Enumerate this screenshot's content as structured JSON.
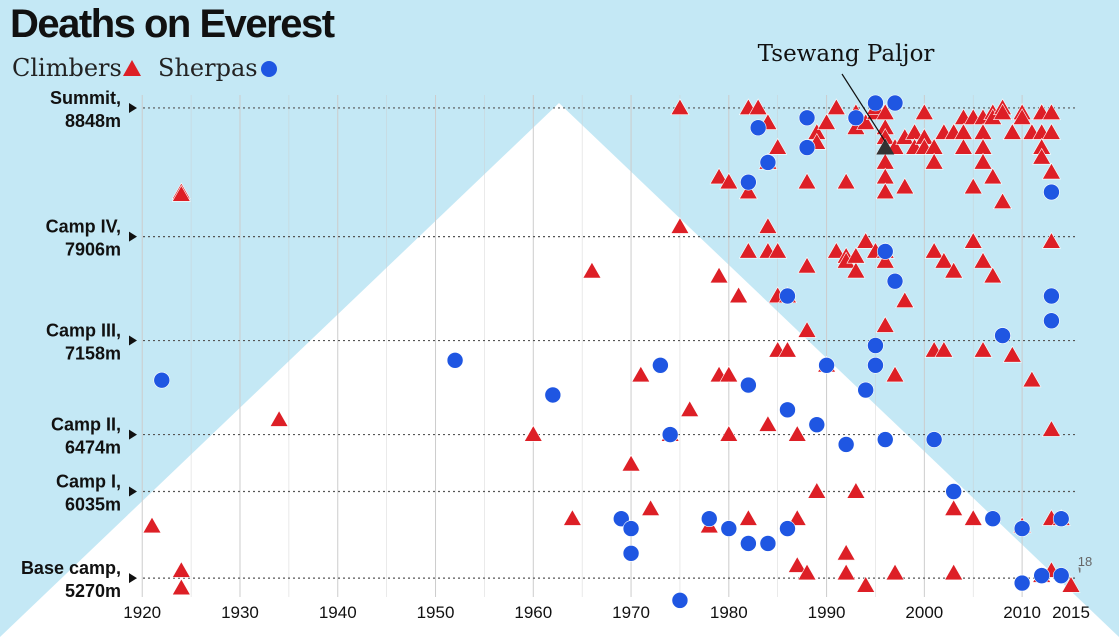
{
  "colors": {
    "sky": "#c4e8f5",
    "mountain": "#ffffff",
    "climber": "#dd1f26",
    "sherpa": "#1f56e2",
    "grid": "#cccccc",
    "category_line": "#555555"
  },
  "chart_data": {
    "type": "scatter",
    "title": "Deaths on Everest",
    "legend": [
      {
        "name": "Climbers",
        "shape": "triangle"
      },
      {
        "name": "Sherpas",
        "shape": "circle"
      }
    ],
    "x": {
      "min": 1918,
      "max": 2016,
      "ticks": [
        1920,
        1930,
        1940,
        1950,
        1960,
        1970,
        1980,
        1990,
        2000,
        2010,
        2015
      ]
    },
    "y": {
      "min": 0,
      "max": 100
    },
    "levels": [
      {
        "name": "Summit,",
        "height": "8848m",
        "y": 97
      },
      {
        "name": "Camp IV,",
        "height": "7906m",
        "y": 71
      },
      {
        "name": "Camp III,",
        "height": "7158m",
        "y": 50
      },
      {
        "name": "Camp II,",
        "height": "6474m",
        "y": 31
      },
      {
        "name": "Camp I,",
        "height": "6035m",
        "y": 19.5
      },
      {
        "name": "Base camp,",
        "height": "5270m",
        "y": 2
      }
    ],
    "annotations": [
      {
        "text": "Tsewang Paljor",
        "x": 1996,
        "y": 89
      },
      {
        "text": "18",
        "x": 2015,
        "y": 3
      }
    ],
    "series": [
      {
        "name": "Climbers",
        "points": [
          [
            1921,
            12.5
          ],
          [
            1924,
            0
          ],
          [
            1924,
            3.5
          ],
          [
            1924,
            80
          ],
          [
            1924,
            79.5
          ],
          [
            1934,
            34
          ],
          [
            1960,
            31
          ],
          [
            1964,
            14
          ],
          [
            1966,
            64
          ],
          [
            1970,
            25
          ],
          [
            1971,
            43
          ],
          [
            1972,
            16
          ],
          [
            1974,
            31
          ],
          [
            1975,
            73
          ],
          [
            1975,
            97
          ],
          [
            1976,
            36
          ],
          [
            1978,
            12.5
          ],
          [
            1979,
            63
          ],
          [
            1979,
            83
          ],
          [
            1979,
            43
          ],
          [
            1980,
            82
          ],
          [
            1980,
            43
          ],
          [
            1980,
            31
          ],
          [
            1981,
            59
          ],
          [
            1982,
            80
          ],
          [
            1982,
            68
          ],
          [
            1982,
            97
          ],
          [
            1982,
            14
          ],
          [
            1983,
            97
          ],
          [
            1984,
            73
          ],
          [
            1984,
            94
          ],
          [
            1984,
            68
          ],
          [
            1984,
            33
          ],
          [
            1984,
            86
          ],
          [
            1985,
            68
          ],
          [
            1985,
            89
          ],
          [
            1985,
            59
          ],
          [
            1985,
            48
          ],
          [
            1986,
            48
          ],
          [
            1986,
            59
          ],
          [
            1987,
            14
          ],
          [
            1987,
            31
          ],
          [
            1987,
            4.5
          ],
          [
            1988,
            3
          ],
          [
            1988,
            82
          ],
          [
            1988,
            65
          ],
          [
            1988,
            52
          ],
          [
            1989,
            92
          ],
          [
            1989,
            90
          ],
          [
            1989,
            19.5
          ],
          [
            1990,
            45
          ],
          [
            1990,
            94
          ],
          [
            1991,
            97
          ],
          [
            1991,
            68
          ],
          [
            1992,
            67
          ],
          [
            1992,
            82
          ],
          [
            1992,
            3
          ],
          [
            1992,
            7
          ],
          [
            1992,
            66
          ],
          [
            1993,
            96
          ],
          [
            1993,
            93
          ],
          [
            1993,
            19.5
          ],
          [
            1993,
            64
          ],
          [
            1993,
            67
          ],
          [
            1994,
            94
          ],
          [
            1994,
            0.5
          ],
          [
            1994,
            70
          ],
          [
            1995,
            96
          ],
          [
            1995,
            97
          ],
          [
            1995,
            68
          ],
          [
            1996,
            93
          ],
          [
            1996,
            96
          ],
          [
            1996,
            91
          ],
          [
            1996,
            89
          ],
          [
            1996,
            86
          ],
          [
            1996,
            83
          ],
          [
            1996,
            80
          ],
          [
            1996,
            68
          ],
          [
            1996,
            66
          ],
          [
            1996,
            53
          ],
          [
            1997,
            3
          ],
          [
            1997,
            43
          ],
          [
            1997,
            89
          ],
          [
            1998,
            91
          ],
          [
            1998,
            81
          ],
          [
            1998,
            58
          ],
          [
            1999,
            92
          ],
          [
            1999,
            89
          ],
          [
            2000,
            96
          ],
          [
            2000,
            91
          ],
          [
            2000,
            89
          ],
          [
            2001,
            89
          ],
          [
            2001,
            86
          ],
          [
            2001,
            68
          ],
          [
            2001,
            48
          ],
          [
            2002,
            92
          ],
          [
            2002,
            48
          ],
          [
            2002,
            66
          ],
          [
            2003,
            92
          ],
          [
            2003,
            64
          ],
          [
            2003,
            3
          ],
          [
            2003,
            16
          ],
          [
            2004,
            95
          ],
          [
            2004,
            89
          ],
          [
            2004,
            92
          ],
          [
            2005,
            95
          ],
          [
            2005,
            81
          ],
          [
            2005,
            70
          ],
          [
            2005,
            14
          ],
          [
            2006,
            95
          ],
          [
            2006,
            92
          ],
          [
            2006,
            89
          ],
          [
            2006,
            86
          ],
          [
            2006,
            66
          ],
          [
            2006,
            48
          ],
          [
            2007,
            96
          ],
          [
            2007,
            95
          ],
          [
            2007,
            83
          ],
          [
            2007,
            63
          ],
          [
            2008,
            97
          ],
          [
            2008,
            96
          ],
          [
            2008,
            78
          ],
          [
            2009,
            92
          ],
          [
            2009,
            47
          ],
          [
            2010,
            96
          ],
          [
            2010,
            95
          ],
          [
            2010,
            12.5
          ],
          [
            2011,
            92
          ],
          [
            2011,
            42
          ],
          [
            2012,
            96
          ],
          [
            2012,
            92
          ],
          [
            2012,
            89
          ],
          [
            2012,
            87
          ],
          [
            2012,
            96
          ],
          [
            2012,
            2.5
          ],
          [
            2013,
            96
          ],
          [
            2013,
            92
          ],
          [
            2013,
            84
          ],
          [
            2013,
            70
          ],
          [
            2013,
            3.5
          ],
          [
            2013,
            32
          ],
          [
            2013,
            14
          ],
          [
            2014,
            14
          ],
          [
            2015,
            0.5
          ]
        ]
      },
      {
        "name": "Sherpas",
        "points": [
          [
            1922,
            42
          ],
          [
            1952,
            46
          ],
          [
            1962,
            39
          ],
          [
            1969,
            14
          ],
          [
            1970,
            12
          ],
          [
            1970,
            7
          ],
          [
            1973,
            45
          ],
          [
            1974,
            31
          ],
          [
            1975,
            -2.5
          ],
          [
            1978,
            14
          ],
          [
            1980,
            12
          ],
          [
            1982,
            82
          ],
          [
            1982,
            41
          ],
          [
            1983,
            93
          ],
          [
            1982,
            9
          ],
          [
            1984,
            9
          ],
          [
            1984,
            86
          ],
          [
            1986,
            59
          ],
          [
            1986,
            12
          ],
          [
            1986,
            36
          ],
          [
            1988,
            95
          ],
          [
            1988,
            89
          ],
          [
            1989,
            33
          ],
          [
            1990,
            45
          ],
          [
            1992,
            29
          ],
          [
            1993,
            95
          ],
          [
            1994,
            40
          ],
          [
            1995,
            98
          ],
          [
            1995,
            49
          ],
          [
            1995,
            45
          ],
          [
            1996,
            68
          ],
          [
            1996,
            30
          ],
          [
            1997,
            98
          ],
          [
            1997,
            62
          ],
          [
            2001,
            30
          ],
          [
            2003,
            19.5
          ],
          [
            2007,
            14
          ],
          [
            2008,
            51
          ],
          [
            2010,
            1
          ],
          [
            2010,
            12
          ],
          [
            2012,
            2.5
          ],
          [
            2013,
            80
          ],
          [
            2013,
            59
          ],
          [
            2013,
            54
          ],
          [
            2014,
            14
          ],
          [
            2014,
            2.5
          ]
        ]
      }
    ]
  }
}
